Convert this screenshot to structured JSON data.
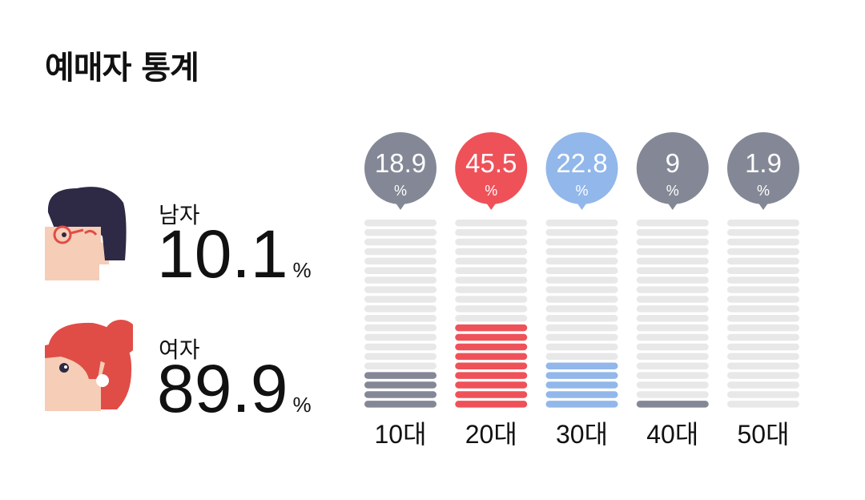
{
  "title": "예매자 통계",
  "gender": {
    "male": {
      "label": "남자",
      "value": "10.1",
      "unit": "%"
    },
    "female": {
      "label": "여자",
      "value": "89.9",
      "unit": "%"
    }
  },
  "colors": {
    "gray": "#848896",
    "red": "#ef5159",
    "blue": "#92b7ea",
    "empty": "#e8e8e8",
    "male_hair": "#2e2944",
    "female_hair": "#e04d47",
    "skin": "#f6cdb6"
  },
  "chart_data": {
    "type": "bar",
    "title": "",
    "categories": [
      "10대",
      "20대",
      "30대",
      "40대",
      "50대"
    ],
    "values": [
      18.9,
      45.5,
      22.8,
      9,
      1.9
    ],
    "value_labels": [
      "18.9",
      "45.5",
      "22.8",
      "9",
      "1.9"
    ],
    "unit": "%",
    "colors": [
      "#848896",
      "#ef5159",
      "#92b7ea",
      "#848896",
      "#848896"
    ],
    "segments_total": 20,
    "filled_segments": [
      4,
      9,
      5,
      1,
      0
    ],
    "ylim": [
      0,
      100
    ],
    "legend": "none",
    "grid": false
  }
}
